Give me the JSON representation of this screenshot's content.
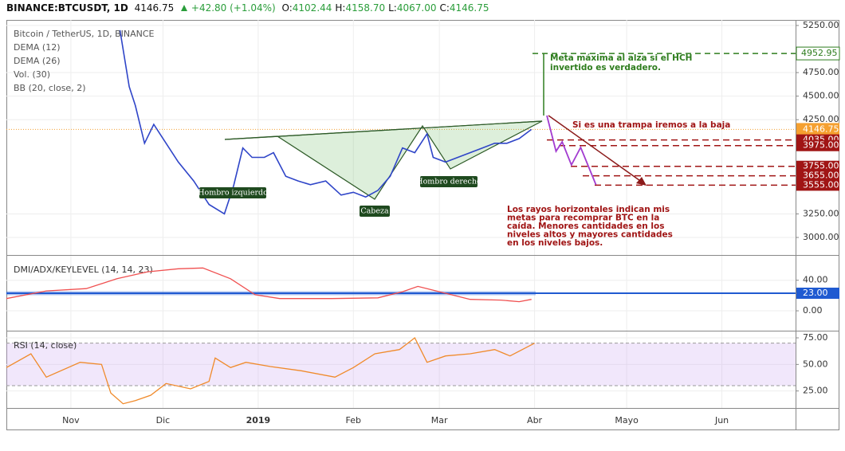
{
  "header": {
    "symbol": "BINANCE:BTCUSDT, 1D",
    "last": "4146.75",
    "change": "+42.80 (+1.04%)",
    "ohlc": [
      {
        "label": "O:",
        "value": "4102.44"
      },
      {
        "label": "H:",
        "value": "4158.70"
      },
      {
        "label": "L:",
        "value": "4067.00"
      },
      {
        "label": "C:",
        "value": "4146.75"
      }
    ]
  },
  "chart_data": [
    {
      "type": "line",
      "indicators": [
        "DEMA (12)",
        "DEMA (26)",
        "Vol. (30)",
        "BB (20, close, 2)"
      ],
      "xlim": [
        -21,
        236
      ],
      "xticks": [
        {
          "value": 0,
          "label": "Nov"
        },
        {
          "value": 30,
          "label": "Dic"
        },
        {
          "value": 61,
          "label": "2019"
        },
        {
          "value": 92,
          "label": "Feb"
        },
        {
          "value": 120,
          "label": "Mar"
        },
        {
          "value": 151,
          "label": "Abr"
        },
        {
          "value": 181,
          "label": "Mayo"
        },
        {
          "value": 212,
          "label": "Jun"
        }
      ],
      "ylim": [
        2814,
        5309
      ],
      "yticks": [
        {
          "value": 5250,
          "label": "5250.00"
        },
        {
          "value": 4750,
          "label": "4750.00"
        },
        {
          "value": 4500,
          "label": "4500.00"
        },
        {
          "value": 4250,
          "label": "4250.00"
        },
        {
          "value": 3250,
          "label": "3250.00"
        },
        {
          "value": 3000,
          "label": "3000.00"
        }
      ],
      "grid": true,
      "x": [
        16,
        19,
        21,
        24,
        27,
        30,
        35,
        40,
        45,
        50,
        53,
        56,
        59,
        63,
        66,
        70,
        74,
        78,
        83,
        88,
        92,
        96,
        100,
        104,
        108,
        112,
        116,
        118,
        122,
        126,
        130,
        134,
        138,
        142,
        146,
        150
      ],
      "series": [
        {
          "name": "Bitcoin / TetherUS, 1D, BINANCE",
          "color": "#2f45c8",
          "values": [
            5200,
            4600,
            4400,
            4000,
            4200,
            4050,
            3800,
            3600,
            3350,
            3250,
            3550,
            3950,
            3850,
            3850,
            3900,
            3650,
            3600,
            3560,
            3600,
            3450,
            3480,
            3430,
            3500,
            3650,
            3950,
            3900,
            4100,
            3850,
            3800,
            3850,
            3900,
            3950,
            4000,
            4000,
            4050,
            4146.75
          ]
        }
      ],
      "last": 4146.75,
      "last_color": "#f5a030",
      "target": {
        "value": 4952.95,
        "color": "#2e7d1e"
      },
      "buy_levels": [
        {
          "value": 4035,
          "label": "4035.00"
        },
        {
          "value": 3975,
          "label": "3975.00"
        },
        {
          "value": 3755,
          "label": "3755.00"
        },
        {
          "value": 3655,
          "label": "3655.00"
        },
        {
          "value": 3555,
          "label": "3555.00"
        }
      ],
      "buy_color": "#a01515",
      "projection": {
        "x": [
          155,
          158,
          160,
          163,
          166,
          171
        ],
        "values": [
          4294,
          3914,
          4015,
          3770,
          3956,
          3559
        ],
        "color": "#a23bd0"
      },
      "annotations": {
        "target": [
          "Meta máxima al alza si el HCH",
          "invertido es verdadero."
        ],
        "trap": [
          "Si es una trampa iremos a la baja"
        ],
        "note": [
          "Los rayos horizontales indican mis",
          "metas para recomprar BTC en la",
          "caída. Menores cantidades en los",
          "niveles altos y mayores cantidades",
          "en los niveles bajos."
        ],
        "left_shoulder": "Hombro izquierdo",
        "head": "Cabeza",
        "right_shoulder": "Hombro derecho"
      }
    },
    {
      "type": "line",
      "title": "DMI/ADX/KEYLEVEL (14, 14, 23)",
      "xlim": [
        -21,
        236
      ],
      "ylim": [
        -26,
        72
      ],
      "yticks": [
        {
          "value": 40,
          "label": "40.00"
        },
        {
          "value": 0,
          "label": "0.00"
        }
      ],
      "keylevel": {
        "value": 23,
        "label": "23.00",
        "color": "#1f5ad1"
      },
      "x": [
        -21,
        -8,
        5,
        15,
        25,
        35,
        43,
        52,
        60,
        68,
        85,
        100,
        108,
        113,
        120,
        130,
        140,
        146,
        150
      ],
      "values": [
        16,
        26,
        29,
        42,
        51,
        55,
        56,
        42,
        21,
        16,
        16,
        17,
        25,
        32,
        25,
        15,
        14,
        12,
        15
      ],
      "color": "#f05050"
    },
    {
      "type": "line",
      "title": "RSI (14, close)",
      "xlim": [
        -21,
        236
      ],
      "ylim": [
        9,
        81
      ],
      "yticks": [
        {
          "value": 75,
          "label": "75.00"
        },
        {
          "value": 50,
          "label": "50.00"
        },
        {
          "value": 25,
          "label": "25.00"
        }
      ],
      "band": [
        30,
        70
      ],
      "x": [
        -21,
        -13,
        -8,
        3,
        10,
        13,
        17,
        21,
        26,
        31,
        39,
        45,
        47,
        52,
        57,
        65,
        75,
        86,
        92,
        99,
        107,
        112,
        116,
        122,
        130,
        138,
        143,
        151
      ],
      "values": [
        47,
        60,
        38,
        52,
        50,
        23,
        13,
        16,
        21,
        32,
        27,
        34,
        56,
        47,
        52,
        48,
        44,
        38,
        47,
        60,
        64,
        75,
        52,
        58,
        60,
        64,
        58,
        70
      ],
      "color": "#f08a2a"
    }
  ]
}
